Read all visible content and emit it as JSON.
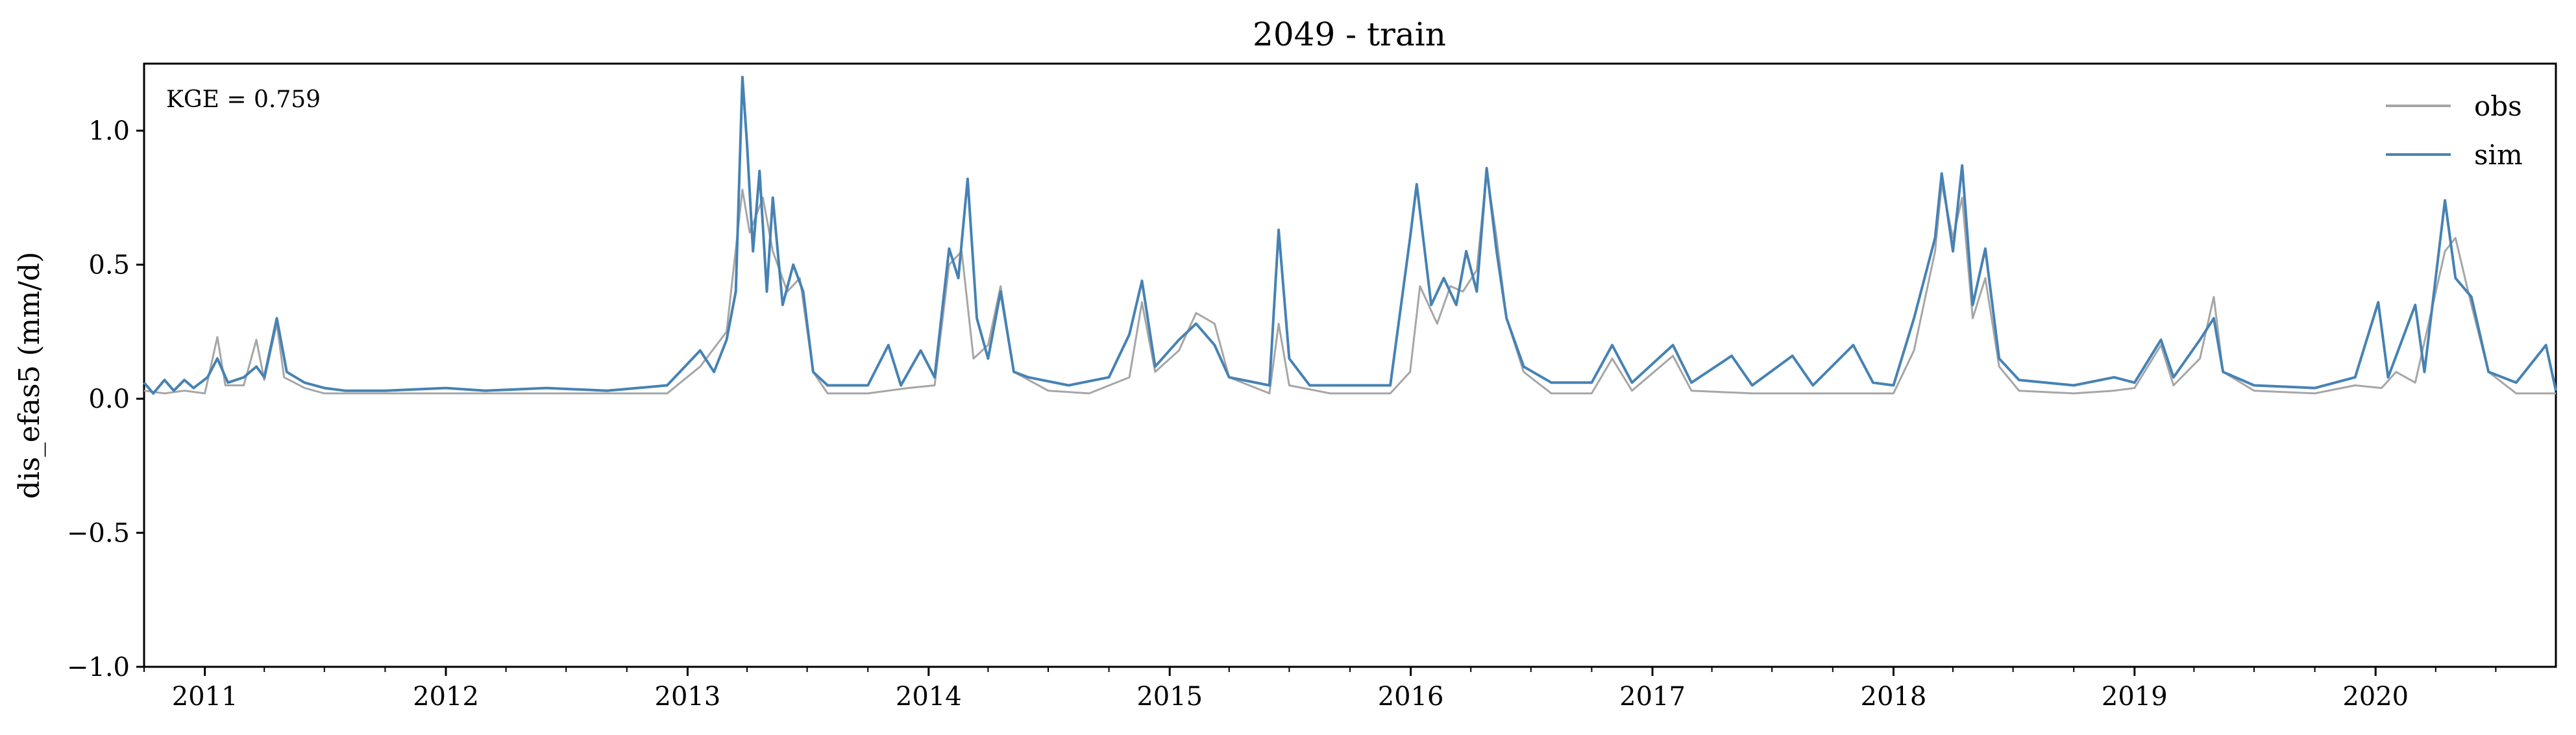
{
  "chart_data": {
    "type": "line",
    "title": "2049 - train",
    "xlabel": "",
    "ylabel": "dis_efas5 (mm/d)",
    "xlim": [
      "2010-10-01",
      "2020-09-30"
    ],
    "ylim": [
      -1.0,
      1.25
    ],
    "y_ticks": [
      -1.0,
      -0.5,
      0.0,
      0.5,
      1.0
    ],
    "y_tick_labels": [
      "−1.0",
      "−0.5",
      "0.0",
      "0.5",
      "1.0"
    ],
    "x_ticks": [
      "2011-01-01",
      "2012-01-01",
      "2013-01-01",
      "2014-01-01",
      "2015-01-01",
      "2016-01-01",
      "2017-01-01",
      "2018-01-01",
      "2019-01-01",
      "2020-01-01"
    ],
    "x_tick_labels": [
      "2011",
      "2012",
      "2013",
      "2014",
      "2015",
      "2016",
      "2017",
      "2018",
      "2019",
      "2020"
    ],
    "annotation": "KGE = 0.759",
    "legend": {
      "placement": "top-right",
      "entries": [
        "obs",
        "sim"
      ]
    },
    "grid": false,
    "series": [
      {
        "name": "obs",
        "color": "#a6a6a6",
        "points": [
          [
            "2010-10-01",
            0.03
          ],
          [
            "2010-11-01",
            0.02
          ],
          [
            "2010-12-01",
            0.03
          ],
          [
            "2011-01-01",
            0.02
          ],
          [
            "2011-01-20",
            0.23
          ],
          [
            "2011-02-01",
            0.05
          ],
          [
            "2011-03-01",
            0.05
          ],
          [
            "2011-03-20",
            0.22
          ],
          [
            "2011-04-01",
            0.07
          ],
          [
            "2011-04-20",
            0.28
          ],
          [
            "2011-05-01",
            0.08
          ],
          [
            "2011-06-01",
            0.04
          ],
          [
            "2011-07-01",
            0.02
          ],
          [
            "2011-09-01",
            0.02
          ],
          [
            "2012-01-01",
            0.02
          ],
          [
            "2012-06-01",
            0.02
          ],
          [
            "2012-12-01",
            0.02
          ],
          [
            "2013-01-20",
            0.12
          ],
          [
            "2013-03-01",
            0.25
          ],
          [
            "2013-03-25",
            0.78
          ],
          [
            "2013-04-05",
            0.62
          ],
          [
            "2013-04-25",
            0.75
          ],
          [
            "2013-05-10",
            0.55
          ],
          [
            "2013-06-01",
            0.4
          ],
          [
            "2013-06-20",
            0.45
          ],
          [
            "2013-07-10",
            0.1
          ],
          [
            "2013-08-01",
            0.02
          ],
          [
            "2013-10-01",
            0.02
          ],
          [
            "2013-12-01",
            0.04
          ],
          [
            "2014-01-10",
            0.05
          ],
          [
            "2014-02-01",
            0.5
          ],
          [
            "2014-02-20",
            0.55
          ],
          [
            "2014-03-10",
            0.15
          ],
          [
            "2014-04-01",
            0.2
          ],
          [
            "2014-04-20",
            0.42
          ],
          [
            "2014-05-10",
            0.1
          ],
          [
            "2014-07-01",
            0.03
          ],
          [
            "2014-09-01",
            0.02
          ],
          [
            "2014-11-01",
            0.08
          ],
          [
            "2014-11-20",
            0.36
          ],
          [
            "2014-12-10",
            0.1
          ],
          [
            "2015-01-15",
            0.18
          ],
          [
            "2015-02-10",
            0.32
          ],
          [
            "2015-03-10",
            0.28
          ],
          [
            "2015-04-01",
            0.08
          ],
          [
            "2015-06-01",
            0.02
          ],
          [
            "2015-06-15",
            0.28
          ],
          [
            "2015-07-01",
            0.05
          ],
          [
            "2015-09-01",
            0.02
          ],
          [
            "2015-12-01",
            0.02
          ],
          [
            "2015-12-31",
            0.1
          ],
          [
            "2016-01-15",
            0.42
          ],
          [
            "2016-02-10",
            0.28
          ],
          [
            "2016-03-01",
            0.42
          ],
          [
            "2016-03-20",
            0.4
          ],
          [
            "2016-04-10",
            0.48
          ],
          [
            "2016-04-25",
            0.85
          ],
          [
            "2016-05-10",
            0.6
          ],
          [
            "2016-05-25",
            0.3
          ],
          [
            "2016-06-20",
            0.1
          ],
          [
            "2016-08-01",
            0.02
          ],
          [
            "2016-10-01",
            0.02
          ],
          [
            "2016-11-01",
            0.15
          ],
          [
            "2016-12-01",
            0.03
          ],
          [
            "2017-02-01",
            0.16
          ],
          [
            "2017-03-01",
            0.03
          ],
          [
            "2017-06-01",
            0.02
          ],
          [
            "2017-10-01",
            0.02
          ],
          [
            "2018-01-01",
            0.02
          ],
          [
            "2018-02-01",
            0.18
          ],
          [
            "2018-03-05",
            0.55
          ],
          [
            "2018-03-15",
            0.8
          ],
          [
            "2018-04-01",
            0.6
          ],
          [
            "2018-04-15",
            0.75
          ],
          [
            "2018-05-01",
            0.3
          ],
          [
            "2018-05-20",
            0.45
          ],
          [
            "2018-06-10",
            0.12
          ],
          [
            "2018-07-10",
            0.03
          ],
          [
            "2018-10-01",
            0.02
          ],
          [
            "2018-12-01",
            0.03
          ],
          [
            "2019-01-01",
            0.04
          ],
          [
            "2019-02-10",
            0.2
          ],
          [
            "2019-03-01",
            0.05
          ],
          [
            "2019-04-10",
            0.15
          ],
          [
            "2019-05-01",
            0.38
          ],
          [
            "2019-05-15",
            0.1
          ],
          [
            "2019-07-01",
            0.03
          ],
          [
            "2019-10-01",
            0.02
          ],
          [
            "2019-12-01",
            0.05
          ],
          [
            "2020-01-10",
            0.04
          ],
          [
            "2020-02-01",
            0.1
          ],
          [
            "2020-03-01",
            0.06
          ],
          [
            "2020-04-15",
            0.55
          ],
          [
            "2020-05-01",
            0.6
          ],
          [
            "2020-05-25",
            0.35
          ],
          [
            "2020-06-20",
            0.1
          ],
          [
            "2020-08-01",
            0.02
          ],
          [
            "2020-09-30",
            0.02
          ]
        ]
      },
      {
        "name": "sim",
        "color": "#4682b4",
        "points": [
          [
            "2010-10-01",
            0.06
          ],
          [
            "2010-10-15",
            0.02
          ],
          [
            "2010-11-01",
            0.07
          ],
          [
            "2010-11-15",
            0.03
          ],
          [
            "2010-12-01",
            0.07
          ],
          [
            "2010-12-15",
            0.04
          ],
          [
            "2011-01-05",
            0.08
          ],
          [
            "2011-01-20",
            0.15
          ],
          [
            "2011-02-05",
            0.06
          ],
          [
            "2011-03-01",
            0.08
          ],
          [
            "2011-03-20",
            0.12
          ],
          [
            "2011-04-01",
            0.08
          ],
          [
            "2011-04-20",
            0.3
          ],
          [
            "2011-05-05",
            0.1
          ],
          [
            "2011-06-01",
            0.06
          ],
          [
            "2011-07-01",
            0.04
          ],
          [
            "2011-08-01",
            0.03
          ],
          [
            "2011-10-01",
            0.03
          ],
          [
            "2012-01-01",
            0.04
          ],
          [
            "2012-03-01",
            0.03
          ],
          [
            "2012-06-01",
            0.04
          ],
          [
            "2012-09-01",
            0.03
          ],
          [
            "2012-12-01",
            0.05
          ],
          [
            "2013-01-20",
            0.18
          ],
          [
            "2013-02-10",
            0.1
          ],
          [
            "2013-03-01",
            0.22
          ],
          [
            "2013-03-15",
            0.4
          ],
          [
            "2013-03-25",
            1.2
          ],
          [
            "2013-04-01",
            0.95
          ],
          [
            "2013-04-10",
            0.55
          ],
          [
            "2013-04-20",
            0.85
          ],
          [
            "2013-05-01",
            0.4
          ],
          [
            "2013-05-10",
            0.75
          ],
          [
            "2013-05-25",
            0.35
          ],
          [
            "2013-06-10",
            0.5
          ],
          [
            "2013-06-25",
            0.4
          ],
          [
            "2013-07-10",
            0.1
          ],
          [
            "2013-08-01",
            0.05
          ],
          [
            "2013-10-01",
            0.05
          ],
          [
            "2013-11-01",
            0.2
          ],
          [
            "2013-11-20",
            0.05
          ],
          [
            "2013-12-20",
            0.18
          ],
          [
            "2014-01-10",
            0.08
          ],
          [
            "2014-02-01",
            0.56
          ],
          [
            "2014-02-15",
            0.45
          ],
          [
            "2014-03-01",
            0.82
          ],
          [
            "2014-03-15",
            0.3
          ],
          [
            "2014-04-01",
            0.15
          ],
          [
            "2014-04-20",
            0.4
          ],
          [
            "2014-05-10",
            0.1
          ],
          [
            "2014-06-01",
            0.08
          ],
          [
            "2014-08-01",
            0.05
          ],
          [
            "2014-10-01",
            0.08
          ],
          [
            "2014-11-01",
            0.24
          ],
          [
            "2014-11-20",
            0.44
          ],
          [
            "2014-12-10",
            0.12
          ],
          [
            "2015-01-15",
            0.22
          ],
          [
            "2015-02-10",
            0.28
          ],
          [
            "2015-03-10",
            0.2
          ],
          [
            "2015-04-01",
            0.08
          ],
          [
            "2015-06-01",
            0.05
          ],
          [
            "2015-06-15",
            0.63
          ],
          [
            "2015-07-01",
            0.15
          ],
          [
            "2015-08-01",
            0.05
          ],
          [
            "2015-10-01",
            0.05
          ],
          [
            "2015-12-01",
            0.05
          ],
          [
            "2015-12-31",
            0.6
          ],
          [
            "2016-01-10",
            0.8
          ],
          [
            "2016-02-01",
            0.35
          ],
          [
            "2016-02-20",
            0.45
          ],
          [
            "2016-03-10",
            0.35
          ],
          [
            "2016-03-25",
            0.55
          ],
          [
            "2016-04-10",
            0.4
          ],
          [
            "2016-04-25",
            0.86
          ],
          [
            "2016-05-10",
            0.55
          ],
          [
            "2016-05-25",
            0.3
          ],
          [
            "2016-06-20",
            0.12
          ],
          [
            "2016-08-01",
            0.06
          ],
          [
            "2016-10-01",
            0.06
          ],
          [
            "2016-11-01",
            0.2
          ],
          [
            "2016-12-01",
            0.06
          ],
          [
            "2017-02-01",
            0.2
          ],
          [
            "2017-03-01",
            0.06
          ],
          [
            "2017-05-01",
            0.16
          ],
          [
            "2017-06-01",
            0.05
          ],
          [
            "2017-08-01",
            0.16
          ],
          [
            "2017-09-01",
            0.05
          ],
          [
            "2017-11-01",
            0.2
          ],
          [
            "2017-12-01",
            0.06
          ],
          [
            "2018-01-01",
            0.05
          ],
          [
            "2018-02-01",
            0.3
          ],
          [
            "2018-03-05",
            0.6
          ],
          [
            "2018-03-15",
            0.84
          ],
          [
            "2018-04-01",
            0.55
          ],
          [
            "2018-04-15",
            0.87
          ],
          [
            "2018-05-01",
            0.35
          ],
          [
            "2018-05-20",
            0.56
          ],
          [
            "2018-06-10",
            0.15
          ],
          [
            "2018-07-10",
            0.07
          ],
          [
            "2018-10-01",
            0.05
          ],
          [
            "2018-12-01",
            0.08
          ],
          [
            "2019-01-01",
            0.06
          ],
          [
            "2019-02-10",
            0.22
          ],
          [
            "2019-03-01",
            0.08
          ],
          [
            "2019-04-10",
            0.22
          ],
          [
            "2019-05-01",
            0.3
          ],
          [
            "2019-05-15",
            0.1
          ],
          [
            "2019-07-01",
            0.05
          ],
          [
            "2019-10-01",
            0.04
          ],
          [
            "2019-12-01",
            0.08
          ],
          [
            "2020-01-05",
            0.36
          ],
          [
            "2020-01-20",
            0.08
          ],
          [
            "2020-03-01",
            0.35
          ],
          [
            "2020-03-15",
            0.1
          ],
          [
            "2020-04-15",
            0.74
          ],
          [
            "2020-05-01",
            0.45
          ],
          [
            "2020-05-25",
            0.38
          ],
          [
            "2020-06-20",
            0.1
          ],
          [
            "2020-08-01",
            0.06
          ],
          [
            "2020-09-15",
            0.2
          ],
          [
            "2020-09-30",
            0.03
          ]
        ]
      }
    ]
  }
}
